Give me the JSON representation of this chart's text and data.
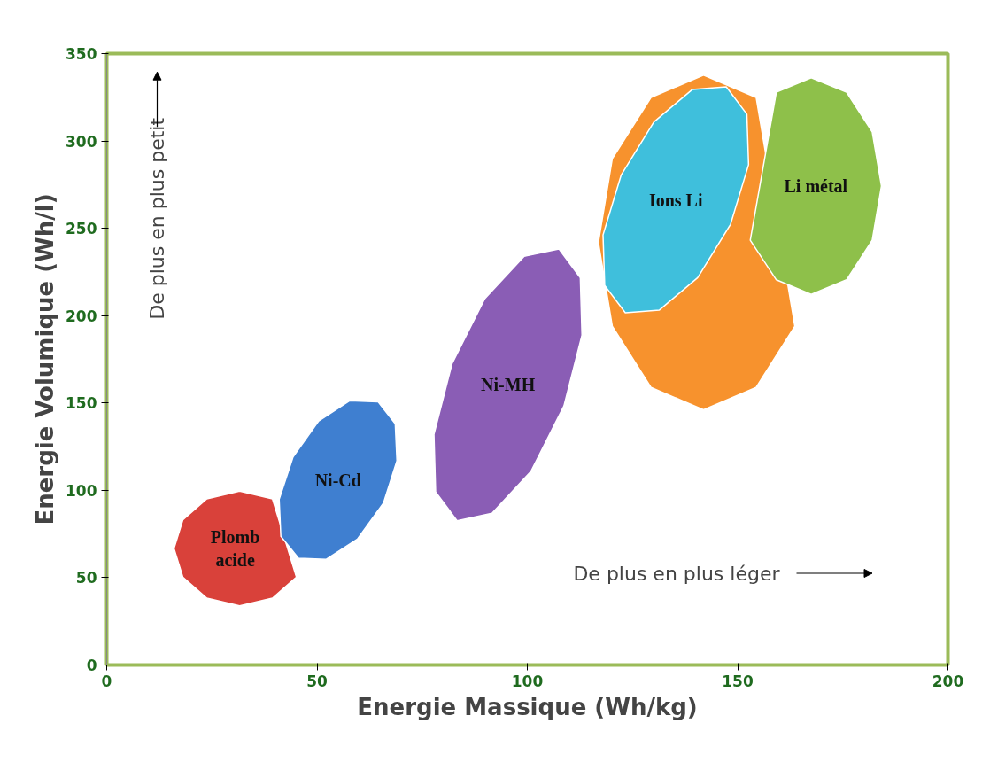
{
  "chart_data": {
    "type": "area",
    "xlabel": "Energie Massique (Wh/kg)",
    "ylabel": "Energie Volumique (Wh/l)",
    "xlim": [
      0,
      200
    ],
    "ylim": [
      0,
      350
    ],
    "xticks": [
      0,
      50,
      100,
      150,
      200
    ],
    "yticks": [
      0,
      50,
      100,
      150,
      200,
      250,
      300,
      350
    ],
    "grid": false,
    "annotations": [
      "De plus en plus petit",
      "De plus en plus léger"
    ],
    "series": [
      {
        "name": "Plomb\nacide",
        "color": "#d9413a",
        "x": [
          null,
          null,
          39.4,
          31.6,
          23.8,
          18.1,
          16.0,
          18.1,
          23.8,
          31.6,
          39.4,
          45.1
        ],
        "values": [
          null,
          null,
          95.1,
          99.5,
          95.1,
          83.1,
          66.7,
          50.3,
          38.3,
          33.9,
          38.3,
          50.3
        ]
      },
      {
        "name": "Ni-Cd",
        "color": "#3f7fd0",
        "x": [
          64.5,
          68.6,
          69.0,
          65.8,
          59.6,
          52.2,
          45.6,
          41.4,
          41.0,
          44.3,
          50.4,
          57.8
        ],
        "values": [
          150.7,
          138.1,
          116.9,
          92.7,
          72.1,
          60.5,
          61.1,
          73.7,
          94.9,
          119.1,
          139.7,
          151.3
        ]
      },
      {
        "name": "Ni-MH",
        "color": "#8a5db5",
        "x": [
          107.5,
          112.6,
          113.0,
          108.7,
          100.9,
          91.6,
          83.3,
          78.2,
          77.8,
          82.1,
          89.9,
          99.2
        ],
        "values": [
          238.2,
          221.7,
          188.8,
          148.3,
          111.0,
          86.9,
          82.6,
          99.1,
          132.0,
          172.5,
          209.8,
          233.9
        ]
      },
      {
        "color": "#f7922d",
        "x": [
          null,
          null,
          154.4,
          141.9,
          129.4,
          120.2,
          116.9,
          120.2,
          129.4,
          141.9,
          154.4,
          163.6
        ],
        "values": [
          null,
          null,
          324.9,
          337.7,
          324.9,
          289.8,
          241.9,
          194.0,
          158.9,
          146.1,
          158.9,
          194.0
        ]
      },
      {
        "name": "Li métal",
        "color": "#8ec04a",
        "x": [
          184.2,
          182.0,
          175.9,
          167.5,
          159.2,
          null,
          null,
          153.0,
          159.2,
          167.5,
          175.9,
          182.0
        ],
        "values": [
          274.2,
          305.2,
          327.9,
          336.2,
          327.9,
          null,
          null,
          243.2,
          220.5,
          212.2,
          220.5,
          243.2
        ]
      },
      {
        "name": "Ions Li",
        "color": "#3fbfdc",
        "x": [
          147.3,
          152.2,
          152.6,
          148.3,
          140.5,
          131.4,
          123.3,
          118.4,
          118.0,
          122.3,
          130.1,
          139.2
        ],
        "values": [
          331.0,
          315.3,
          286.4,
          252.2,
          221.7,
          203.2,
          201.6,
          217.3,
          246.2,
          280.4,
          310.9,
          329.4
        ]
      }
    ]
  }
}
